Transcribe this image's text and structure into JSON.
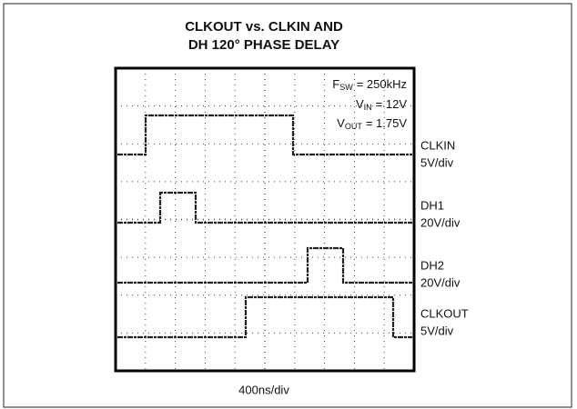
{
  "title": {
    "lines": [
      "CLKOUT vs. CLKIN AND",
      "DH 120° PHASE DELAY"
    ]
  },
  "conditions": [
    {
      "symbol": "F",
      "subscript": "SW",
      "value": "= 250kHz"
    },
    {
      "symbol": "V",
      "subscript": "IN",
      "value": "= 12V"
    },
    {
      "symbol": "V",
      "subscript": "OUT",
      "value": "= 1.75V"
    }
  ],
  "channels": [
    {
      "name": "CLKIN",
      "scale": "5V/div"
    },
    {
      "name": "DH1",
      "scale": "20V/div"
    },
    {
      "name": "DH2",
      "scale": "20V/div"
    },
    {
      "name": "CLKOUT",
      "scale": "5V/div"
    }
  ],
  "time_scale": "400ns/div"
}
